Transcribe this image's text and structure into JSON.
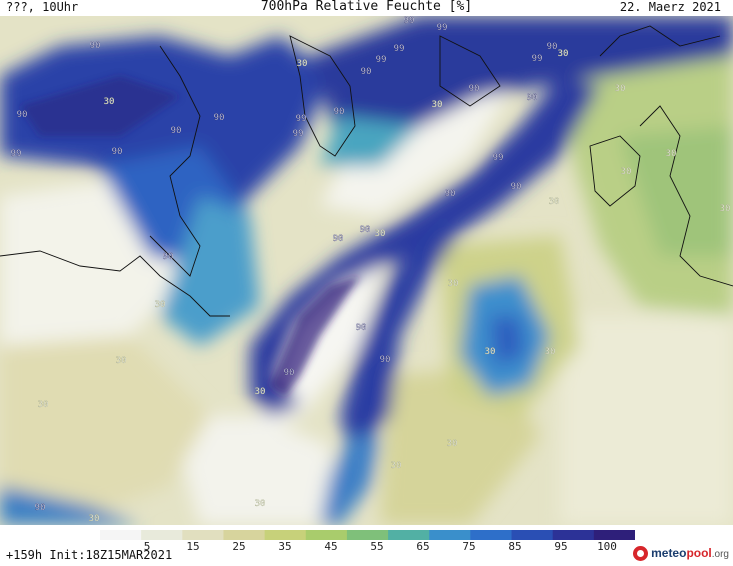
{
  "header": {
    "left": "???, 10Uhr",
    "title": "700hPa Relative Feuchte [%]",
    "date": "22. Maerz 2021"
  },
  "footer": {
    "run_info": "+159h  Init:18Z15MAR2021",
    "logo": {
      "brand": "meteo",
      "accent": "pool",
      "tld": ".org"
    }
  },
  "legend": {
    "ticks": [
      "5",
      "15",
      "25",
      "35",
      "45",
      "55",
      "65",
      "75",
      "85",
      "95",
      "100"
    ],
    "colors": [
      "#f5f5f5",
      "#e8eadb",
      "#e1dfbf",
      "#d7d49d",
      "#c7d17a",
      "#a9cc6c",
      "#7fc07a",
      "#52b0a4",
      "#3a8fcb",
      "#2e6fc9",
      "#2a4fb4",
      "#2c3297",
      "#2e1f7a"
    ]
  },
  "map": {
    "field": "relative humidity 700hPa",
    "contour_labels": [
      "90",
      "99",
      "30"
    ]
  }
}
